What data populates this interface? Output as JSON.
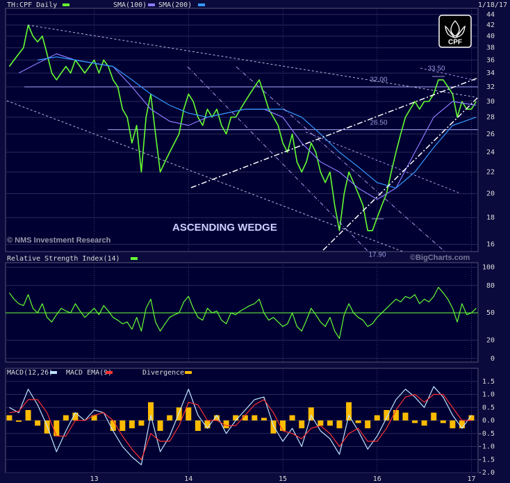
{
  "chart_data": [
    {
      "type": "line",
      "date": "1/18/17",
      "logo": "CPF",
      "watermark": "© NMS Investment Research",
      "annotation": "ASCENDING WEDGE",
      "log_scale": true,
      "grid": true,
      "xlim": [
        12.06,
        17.07
      ],
      "xticks": [
        13,
        14,
        15,
        16,
        17
      ],
      "ylim": [
        15.5,
        45.2
      ],
      "yticks": [
        16,
        18,
        20,
        22,
        24,
        26,
        28,
        30,
        32,
        34,
        36,
        38,
        40,
        42,
        44
      ],
      "x": [
        12.1,
        12.15,
        12.2,
        12.25,
        12.3,
        12.35,
        12.4,
        12.45,
        12.5,
        12.55,
        12.6,
        12.65,
        12.7,
        12.75,
        12.8,
        12.85,
        12.9,
        12.95,
        13,
        13.05,
        13.1,
        13.15,
        13.2,
        13.25,
        13.3,
        13.35,
        13.4,
        13.45,
        13.5,
        13.55,
        13.6,
        13.65,
        13.7,
        13.75,
        13.8,
        13.85,
        13.9,
        13.95,
        14,
        14.05,
        14.1,
        14.15,
        14.2,
        14.25,
        14.3,
        14.35,
        14.4,
        14.45,
        14.5,
        14.55,
        14.6,
        14.65,
        14.7,
        14.75,
        14.8,
        14.85,
        14.9,
        14.95,
        15,
        15.05,
        15.1,
        15.15,
        15.2,
        15.25,
        15.3,
        15.35,
        15.4,
        15.45,
        15.5,
        15.55,
        15.6,
        15.65,
        15.7,
        15.75,
        15.8,
        15.85,
        15.9,
        15.95,
        16,
        16.05,
        16.1,
        16.15,
        16.2,
        16.25,
        16.3,
        16.35,
        16.4,
        16.45,
        16.5,
        16.55,
        16.6,
        16.65,
        16.7,
        16.75,
        16.8,
        16.85,
        16.9,
        16.95,
        17,
        17.05
      ],
      "series": [
        {
          "name": "TH:CPF Daily",
          "color": "#66ff33",
          "values": [
            35,
            36,
            37,
            38,
            42,
            40,
            39,
            40,
            37,
            34,
            33,
            34,
            35,
            34,
            36,
            35,
            34,
            35,
            36,
            34,
            36,
            35,
            33,
            32,
            29,
            28,
            25,
            27,
            22,
            28,
            31,
            26,
            22,
            23,
            24,
            25,
            26,
            29,
            31,
            30,
            28,
            27,
            29,
            28,
            29,
            27,
            26,
            28,
            28,
            29,
            30,
            31,
            32,
            33,
            31,
            29,
            28,
            27,
            25,
            24,
            26,
            23,
            22,
            23,
            25,
            24,
            22,
            21,
            22,
            19,
            17,
            20,
            22,
            21,
            20,
            19,
            17,
            17,
            18,
            19,
            20,
            22,
            24,
            26,
            28,
            29,
            30,
            29,
            30,
            30,
            31,
            33,
            33,
            32,
            31,
            28,
            30,
            29,
            29,
            30
          ]
        },
        {
          "name": "SMA(100)",
          "color": "#8c7cff",
          "x": [
            12.2,
            12.4,
            12.6,
            12.8,
            13.0,
            13.2,
            13.4,
            13.6,
            13.8,
            14.0,
            14.2,
            14.4,
            14.6,
            14.8,
            15.0,
            15.2,
            15.4,
            15.6,
            15.8,
            16.0,
            16.2,
            16.4,
            16.6,
            16.8,
            17.05
          ],
          "values": [
            34,
            35.5,
            37,
            36,
            35.5,
            35,
            32,
            29,
            27.5,
            27,
            28,
            28.5,
            29,
            29,
            28,
            25,
            23,
            22,
            20.5,
            19.5,
            20.5,
            24,
            28,
            30,
            29.5
          ]
        },
        {
          "name": "SMA(200)",
          "color": "#3399ff",
          "x": [
            12.4,
            12.6,
            12.8,
            13.0,
            13.2,
            13.4,
            13.6,
            13.8,
            14.0,
            14.2,
            14.4,
            14.6,
            14.8,
            15.0,
            15.2,
            15.4,
            15.6,
            15.8,
            16.0,
            16.2,
            16.4,
            16.6,
            16.8,
            17.05
          ],
          "values": [
            36,
            36.5,
            36,
            35.5,
            35,
            33,
            31,
            29.5,
            28.5,
            28,
            28.5,
            29,
            29,
            29,
            28,
            26,
            24,
            22.5,
            21,
            20.5,
            22,
            24.5,
            27,
            28
          ]
        }
      ],
      "levels": [
        {
          "value": 32,
          "label": "32.00"
        },
        {
          "value": 26.5,
          "label": "26.50"
        }
      ],
      "extremes": [
        {
          "value": 33.5,
          "label": "33.50"
        },
        {
          "value": 17.9,
          "label": "17.90"
        }
      ]
    },
    {
      "type": "line",
      "watermark": "©BigCharts.com",
      "grid": true,
      "xlim": [
        12.06,
        17.07
      ],
      "xticks": [
        13,
        14,
        15,
        16,
        17
      ],
      "ylim": [
        -4,
        105
      ],
      "yticks": [
        0,
        20,
        50,
        80,
        100
      ],
      "reference_line": 50,
      "x": [
        12.1,
        12.15,
        12.2,
        12.25,
        12.3,
        12.35,
        12.4,
        12.45,
        12.5,
        12.55,
        12.6,
        12.65,
        12.7,
        12.75,
        12.8,
        12.85,
        12.9,
        12.95,
        13,
        13.05,
        13.1,
        13.15,
        13.2,
        13.25,
        13.3,
        13.35,
        13.4,
        13.45,
        13.5,
        13.55,
        13.6,
        13.65,
        13.7,
        13.75,
        13.8,
        13.85,
        13.9,
        13.95,
        14,
        14.05,
        14.1,
        14.15,
        14.2,
        14.25,
        14.3,
        14.35,
        14.4,
        14.45,
        14.5,
        14.55,
        14.6,
        14.65,
        14.7,
        14.75,
        14.8,
        14.85,
        14.9,
        14.95,
        15,
        15.05,
        15.1,
        15.15,
        15.2,
        15.25,
        15.3,
        15.35,
        15.4,
        15.45,
        15.5,
        15.55,
        15.6,
        15.65,
        15.7,
        15.75,
        15.8,
        15.85,
        15.9,
        15.95,
        16,
        16.05,
        16.1,
        16.15,
        16.2,
        16.25,
        16.3,
        16.35,
        16.4,
        16.45,
        16.5,
        16.55,
        16.6,
        16.65,
        16.7,
        16.75,
        16.8,
        16.85,
        16.9,
        16.95,
        17,
        17.05
      ],
      "series": [
        {
          "name": "Relative Strength Index(14)",
          "color": "#66ff33",
          "values": [
            72,
            65,
            60,
            58,
            70,
            55,
            50,
            60,
            45,
            40,
            48,
            55,
            52,
            50,
            60,
            52,
            45,
            50,
            55,
            48,
            58,
            52,
            45,
            42,
            38,
            40,
            32,
            45,
            30,
            55,
            65,
            40,
            30,
            38,
            45,
            48,
            50,
            62,
            68,
            55,
            45,
            42,
            55,
            50,
            52,
            42,
            38,
            50,
            48,
            52,
            55,
            58,
            60,
            65,
            50,
            42,
            45,
            40,
            35,
            38,
            50,
            35,
            30,
            42,
            55,
            48,
            40,
            35,
            45,
            30,
            22,
            48,
            60,
            50,
            45,
            42,
            35,
            38,
            45,
            50,
            55,
            60,
            65,
            62,
            68,
            66,
            70,
            60,
            65,
            62,
            68,
            78,
            72,
            65,
            55,
            40,
            60,
            48,
            50,
            55
          ]
        }
      ]
    },
    {
      "type": "line",
      "grid": true,
      "xtick_labels": true,
      "xlim": [
        12.06,
        17.07
      ],
      "xticks": [
        13,
        14,
        15,
        16,
        17
      ],
      "ylim": [
        -2,
        2
      ],
      "yticks": [
        1.5,
        {
          "value": 1,
          "label": "1.0"
        },
        0.5,
        {
          "value": 0,
          "label": "0.0"
        },
        -0.5,
        {
          "value": -1,
          "label": "-1.0"
        },
        -1.5,
        {
          "value": -2,
          "label": "-2.0"
        }
      ],
      "x": [
        12.1,
        12.2,
        12.3,
        12.4,
        12.5,
        12.6,
        12.7,
        12.8,
        12.9,
        13.0,
        13.1,
        13.2,
        13.3,
        13.4,
        13.5,
        13.6,
        13.7,
        13.8,
        13.9,
        14.0,
        14.1,
        14.2,
        14.3,
        14.4,
        14.5,
        14.6,
        14.7,
        14.8,
        14.9,
        15.0,
        15.1,
        15.2,
        15.3,
        15.4,
        15.5,
        15.6,
        15.7,
        15.8,
        15.9,
        16.0,
        16.1,
        16.2,
        16.3,
        16.4,
        16.5,
        16.6,
        16.7,
        16.8,
        16.9,
        17.0
      ],
      "series": [
        {
          "name": "MACD(12,26)",
          "color": "#bfe6ff",
          "values": [
            0.5,
            0.3,
            1.2,
            0.6,
            -0.2,
            -1.2,
            -0.4,
            0.3,
            0,
            0.4,
            0.3,
            -0.4,
            -1.0,
            -1.4,
            -1.7,
            0.2,
            -1.2,
            -0.6,
            0.3,
            1.2,
            0.2,
            -0.3,
            0.2,
            -0.5,
            0,
            0.4,
            0.8,
            0.9,
            -0.2,
            -0.8,
            -0.3,
            -1.0,
            0.2,
            -0.4,
            -0.7,
            -1.3,
            0.2,
            -0.4,
            -1.1,
            -0.6,
            0.1,
            0.8,
            1.2,
            0.9,
            0.5,
            1.3,
            0.9,
            0.2,
            -0.3,
            0.2
          ]
        },
        {
          "name": "MACD EMA(9)",
          "color": "#ff3333",
          "values": [
            0.3,
            0.35,
            0.8,
            0.8,
            0.3,
            -0.6,
            -0.6,
            0,
            0,
            0.2,
            0.3,
            0,
            -0.6,
            -1.1,
            -1.5,
            -0.5,
            -0.8,
            -0.8,
            -0.2,
            0.7,
            0.6,
            0,
            0,
            -0.2,
            -0.2,
            0.2,
            0.6,
            0.8,
            0.3,
            -0.4,
            -0.5,
            -0.7,
            -0.3,
            -0.2,
            -0.5,
            -1.0,
            -0.5,
            -0.3,
            -0.8,
            -0.8,
            -0.3,
            0.4,
            0.9,
            1.0,
            0.7,
            1.0,
            1.0,
            0.5,
            0,
            0
          ]
        },
        {
          "name": "Divergence",
          "type": "bar",
          "color": "#ffbb00",
          "values": [
            0.2,
            -0.05,
            0.4,
            -0.2,
            -0.5,
            -0.6,
            0.2,
            0.3,
            0,
            0.2,
            0,
            -0.4,
            -0.4,
            -0.3,
            -0.2,
            0.7,
            -0.4,
            0.2,
            0.5,
            0.5,
            -0.4,
            -0.3,
            0.2,
            -0.3,
            0.2,
            0.2,
            0.2,
            0.1,
            -0.5,
            -0.4,
            0.2,
            -0.3,
            0.5,
            -0.2,
            -0.2,
            -0.3,
            0.7,
            -0.1,
            -0.3,
            0.2,
            0.4,
            0.4,
            0.3,
            -0.1,
            -0.2,
            0.3,
            -0.1,
            -0.3,
            -0.3,
            0.2
          ]
        }
      ]
    }
  ]
}
